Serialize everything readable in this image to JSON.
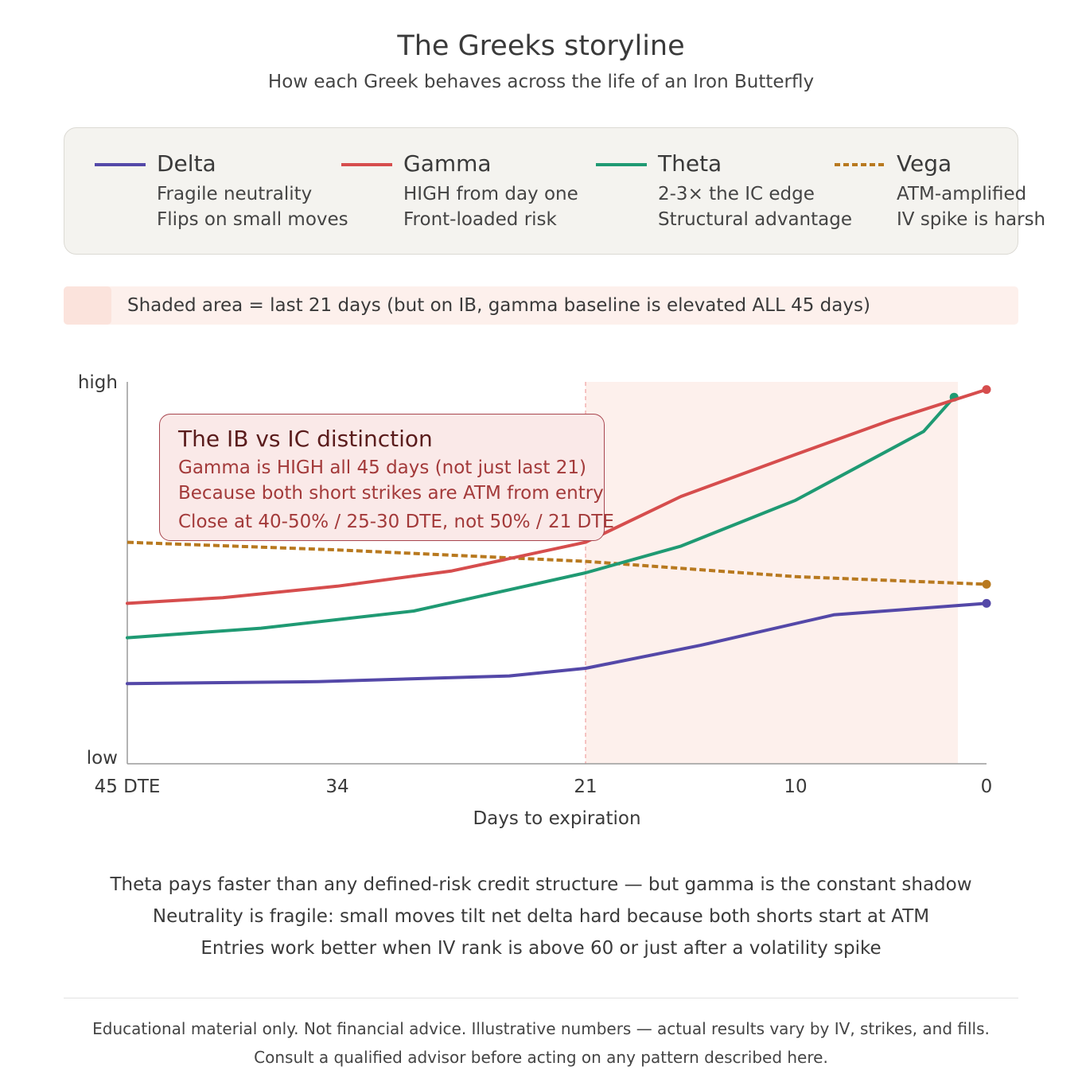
{
  "header": {
    "title": "The Greeks storyline",
    "subtitle": "How each Greek behaves across the life of an Iron Butterfly"
  },
  "legend": [
    {
      "name": "Delta",
      "color": "#5448a8",
      "dashed": false,
      "line1": "Fragile neutrality",
      "line2": "Flips on small moves"
    },
    {
      "name": "Gamma",
      "color": "#d64d4d",
      "dashed": false,
      "line1": "HIGH from day one",
      "line2": "Front-loaded risk"
    },
    {
      "name": "Theta",
      "color": "#1f9a73",
      "dashed": false,
      "line1": "2-3× the IC edge",
      "line2": "Structural advantage"
    },
    {
      "name": "Vega",
      "color": "#b8791f",
      "dashed": true,
      "line1": "ATM-amplified",
      "line2": "IV spike is harsh"
    }
  ],
  "shade_note": "Shaded area = last 21 days (but on IB, gamma baseline is elevated ALL 45 days)",
  "annotation": {
    "title": "The IB vs IC distinction",
    "lines": [
      "Gamma is HIGH all 45 days (not just last 21)",
      "Because both short strikes are ATM from entry",
      "Close at 40-50% / 25-30 DTE, not 50% / 21 DTE"
    ]
  },
  "chart_data": {
    "type": "line",
    "xlabel": "Days to expiration",
    "ylabel": "",
    "y_tick_labels": {
      "low": "low",
      "high": "high"
    },
    "x_ticks": [
      {
        "value": 45,
        "label": "45 DTE"
      },
      {
        "value": 34,
        "label": "34"
      },
      {
        "value": 21,
        "label": "21"
      },
      {
        "value": 10,
        "label": "10"
      },
      {
        "value": 0,
        "label": "0"
      }
    ],
    "xlim": [
      45,
      0
    ],
    "ylim": [
      0,
      1
    ],
    "shaded_region": {
      "x_from": 21,
      "x_to": 1.5,
      "color": "#fdf0ec"
    },
    "marker_line_x": 21,
    "series": [
      {
        "name": "Delta",
        "color": "#5448a8",
        "dashed": false,
        "end_marker": true,
        "points": [
          [
            45,
            0.21
          ],
          [
            35,
            0.215
          ],
          [
            25,
            0.23
          ],
          [
            21,
            0.25
          ],
          [
            15,
            0.31
          ],
          [
            8,
            0.39
          ],
          [
            0,
            0.42
          ]
        ]
      },
      {
        "name": "Gamma",
        "color": "#d64d4d",
        "dashed": false,
        "end_marker": true,
        "points": [
          [
            45,
            0.42
          ],
          [
            40,
            0.435
          ],
          [
            34,
            0.465
          ],
          [
            28,
            0.505
          ],
          [
            21,
            0.58
          ],
          [
            16,
            0.7
          ],
          [
            10,
            0.81
          ],
          [
            5,
            0.9
          ],
          [
            0,
            0.98
          ]
        ]
      },
      {
        "name": "Theta",
        "color": "#1f9a73",
        "dashed": false,
        "end_marker": true,
        "points": [
          [
            45,
            0.33
          ],
          [
            38,
            0.355
          ],
          [
            30,
            0.4
          ],
          [
            21,
            0.5
          ],
          [
            16,
            0.57
          ],
          [
            10,
            0.69
          ],
          [
            3.3,
            0.87
          ],
          [
            1.7,
            0.96
          ]
        ]
      },
      {
        "name": "Vega",
        "color": "#b8791f",
        "dashed": true,
        "end_marker": true,
        "points": [
          [
            45,
            0.58
          ],
          [
            34,
            0.56
          ],
          [
            21,
            0.53
          ],
          [
            10,
            0.49
          ],
          [
            0,
            0.47
          ]
        ]
      }
    ]
  },
  "takeaways": [
    "Theta pays faster than any defined-risk credit structure — but gamma is the constant shadow",
    "Neutrality is fragile: small moves tilt net delta hard because both shorts start at ATM",
    "Entries work better when IV rank is above 60 or just after a volatility spike"
  ],
  "footer": [
    "Educational material only. Not financial advice. Illustrative numbers — actual results vary by IV, strikes, and fills.",
    "Consult a qualified advisor before acting on any pattern described here."
  ]
}
